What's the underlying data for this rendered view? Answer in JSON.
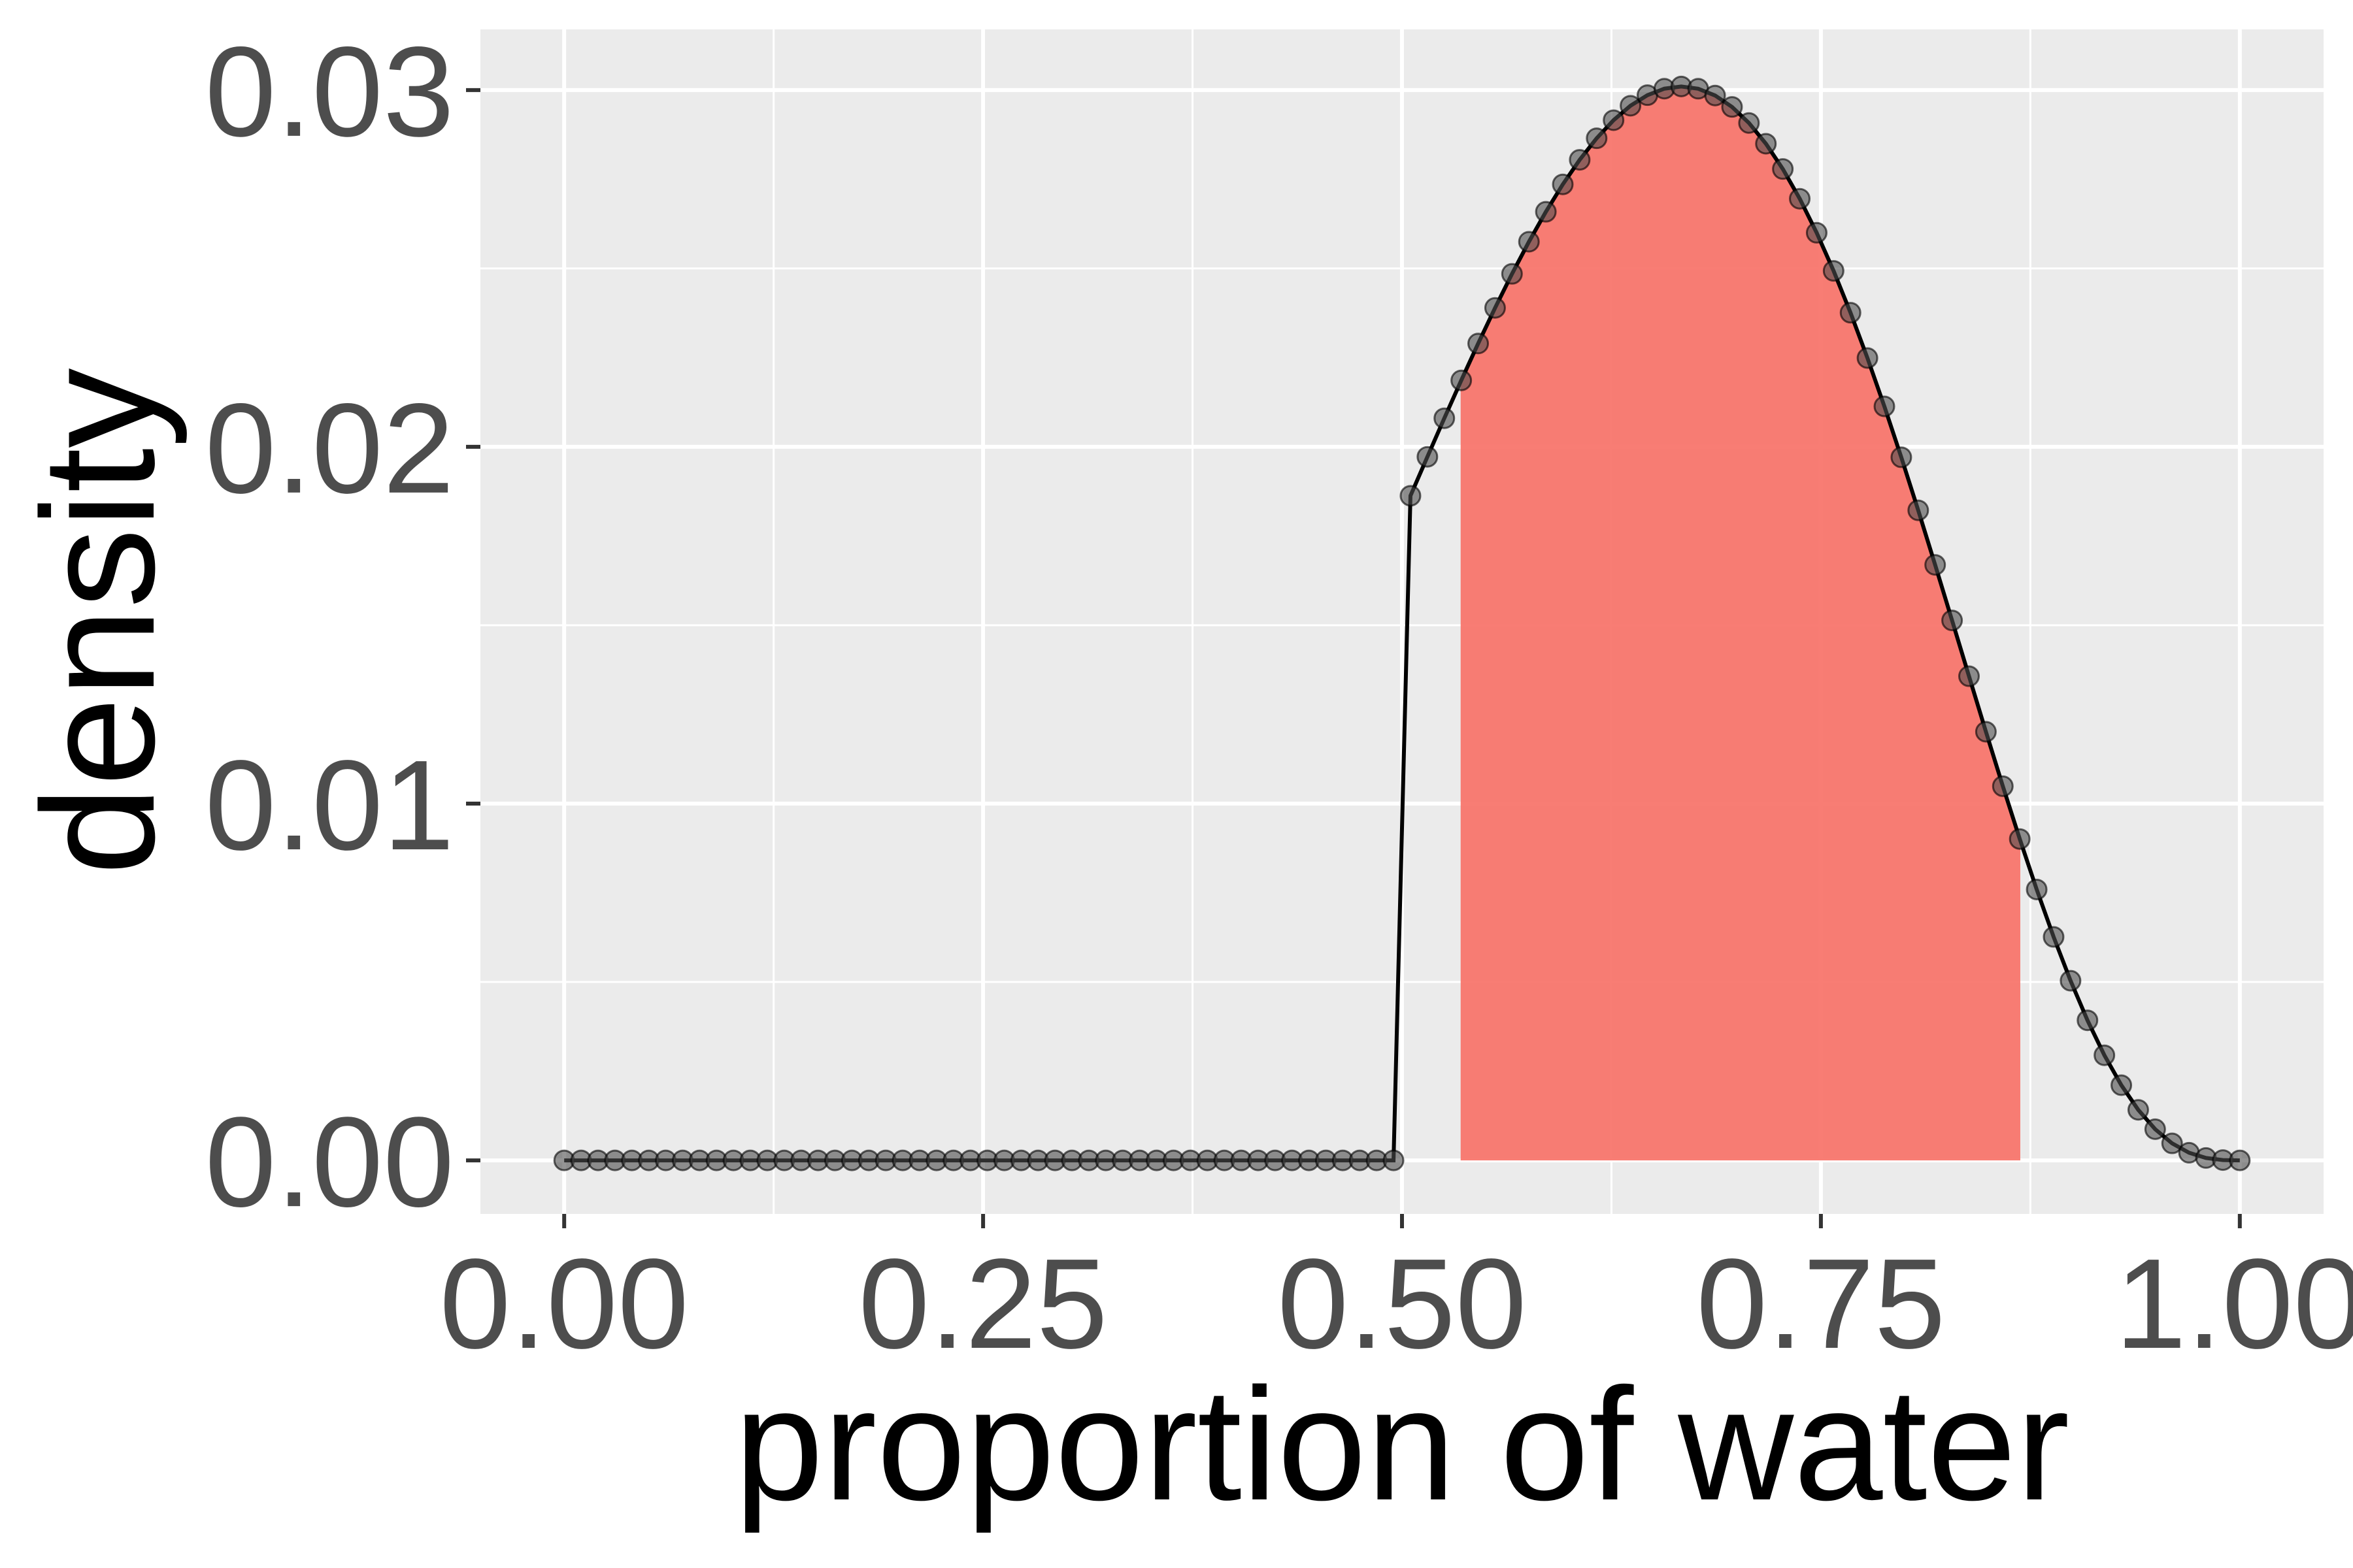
{
  "chart_data": {
    "type": "line",
    "title": "",
    "xlabel": "proportion of water",
    "ylabel": "density",
    "xlim": [
      -0.05,
      1.05
    ],
    "ylim": [
      -0.0015,
      0.0317
    ],
    "x_ticks": [
      0.0,
      0.25,
      0.5,
      0.75,
      1.0
    ],
    "x_tick_labels": [
      "0.00",
      "0.25",
      "0.50",
      "0.75",
      "1.00"
    ],
    "y_ticks": [
      0.0,
      0.01,
      0.02,
      0.03
    ],
    "y_tick_labels": [
      "0.00",
      "0.01",
      "0.02",
      "0.03"
    ],
    "grid": true,
    "series": [
      {
        "grid_points": 100,
        "prior": "0 for p < 0.5, constant for p >= 0.5",
        "likelihood": "binomial, 6 successes in 9 trials",
        "peak_density": 0.0301,
        "points_marked": true
      }
    ],
    "shaded_interval": {
      "from": 0.535,
      "to": 0.869,
      "color": "#f8766d"
    },
    "colors": {
      "line": "#000000",
      "points": "#4d4d4d",
      "shade": "#f8766d",
      "panel": "#ebebeb",
      "grid": "#ffffff"
    }
  }
}
